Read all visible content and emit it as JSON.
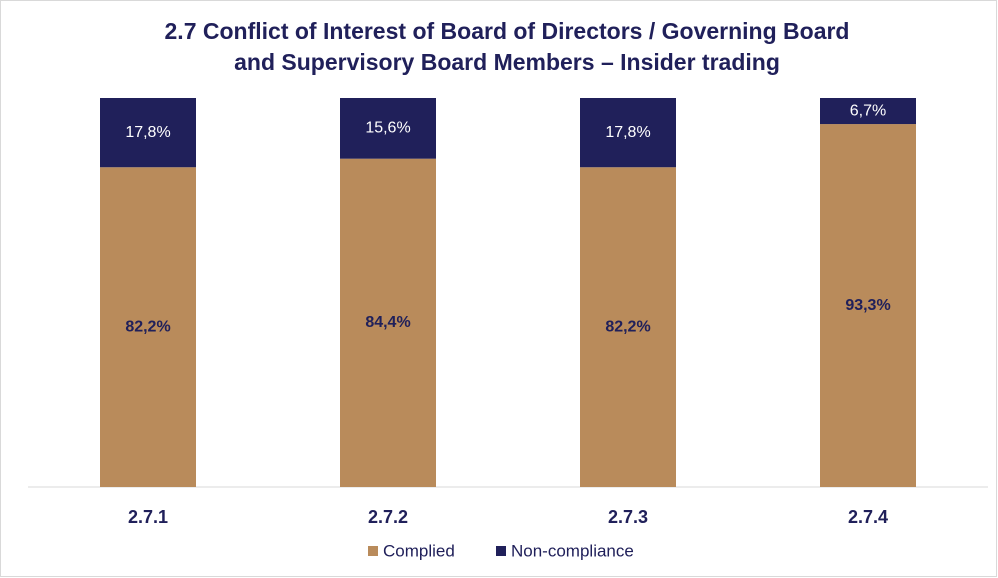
{
  "chart_data": {
    "type": "bar",
    "stacked": true,
    "title": [
      "2.7 Conflict of Interest of Board of Directors / Governing Board",
      "and Supervisory Board Members – Insider trading"
    ],
    "categories": [
      "2.7.1",
      "2.7.2",
      "2.7.3",
      "2.7.4"
    ],
    "series": [
      {
        "name": "Complied",
        "color": "#b98b5b",
        "values": [
          82.2,
          84.4,
          82.2,
          93.3
        ],
        "value_labels": [
          "82,2%",
          "84,4%",
          "82,2%",
          "93,3%"
        ]
      },
      {
        "name": "Non-compliance",
        "color": "#20205a",
        "values": [
          17.8,
          15.6,
          17.8,
          6.7
        ],
        "value_labels": [
          "17,8%",
          "15,6%",
          "17,8%",
          "6,7%"
        ]
      }
    ],
    "ylim": [
      0,
      100
    ],
    "legend": "bottom"
  }
}
